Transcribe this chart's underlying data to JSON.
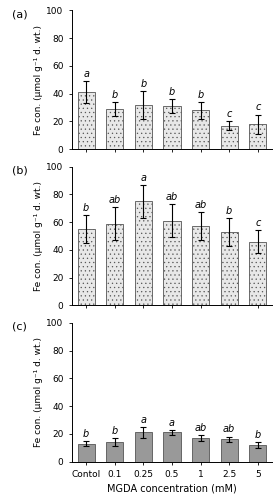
{
  "categories": [
    "Contol",
    "0.1",
    "0.25",
    "0.5",
    "1",
    "2.5",
    "5"
  ],
  "xlabel": "MGDA concentration (mM)",
  "ylabel": "Fe con. (μmol g⁻¹ d. wt.)",
  "panels": [
    {
      "label": "(a)",
      "values": [
        41,
        29,
        32,
        31,
        28,
        17,
        18
      ],
      "errors": [
        8,
        5,
        10,
        5,
        6,
        3,
        7
      ],
      "letters": [
        "a",
        "b",
        "b",
        "b",
        "b",
        "c",
        "c"
      ],
      "bar_facecolor": "#e8e8e8",
      "hatch": "....",
      "hatch_color": "#aaaaaa",
      "ylim": [
        0,
        100
      ],
      "yticks": [
        0,
        20,
        40,
        60,
        80,
        100
      ]
    },
    {
      "label": "(b)",
      "values": [
        55,
        59,
        75,
        61,
        57,
        53,
        46
      ],
      "errors": [
        10,
        12,
        12,
        12,
        10,
        10,
        8
      ],
      "letters": [
        "b",
        "ab",
        "a",
        "ab",
        "ab",
        "b",
        "c"
      ],
      "bar_facecolor": "#e8e8e8",
      "hatch": "....",
      "hatch_color": "#aaaaaa",
      "ylim": [
        0,
        100
      ],
      "yticks": [
        0,
        20,
        40,
        60,
        80,
        100
      ]
    },
    {
      "label": "(c)",
      "values": [
        13,
        14,
        21,
        21,
        17,
        16,
        12
      ],
      "errors": [
        2,
        3,
        4,
        2,
        2,
        2,
        2
      ],
      "letters": [
        "b",
        "b",
        "a",
        "a",
        "ab",
        "ab",
        "b"
      ],
      "bar_facecolor": "#999999",
      "hatch": "",
      "hatch_color": "#999999",
      "ylim": [
        0,
        100
      ],
      "yticks": [
        0,
        20,
        40,
        60,
        80,
        100
      ]
    }
  ],
  "bar_width": 0.6,
  "letter_fontsize": 7,
  "tick_fontsize": 6.5,
  "ylabel_fontsize": 6.5,
  "xlabel_fontsize": 7,
  "panel_label_fontsize": 8
}
